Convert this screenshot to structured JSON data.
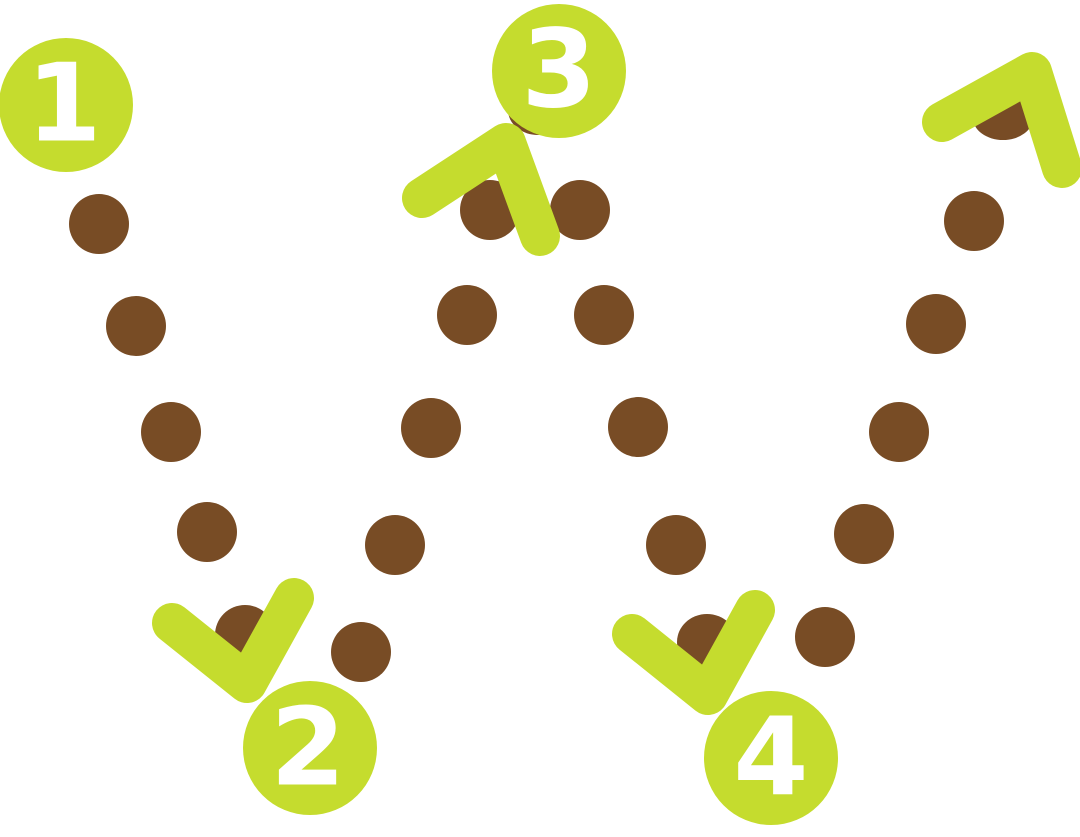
{
  "colors": {
    "dot": "#784c25",
    "accent": "#c5dc2e",
    "numeral": "#ffffff",
    "background": "#ffffff"
  },
  "badges": [
    {
      "label": "1"
    },
    {
      "label": "2"
    },
    {
      "label": "3"
    },
    {
      "label": "4"
    }
  ]
}
